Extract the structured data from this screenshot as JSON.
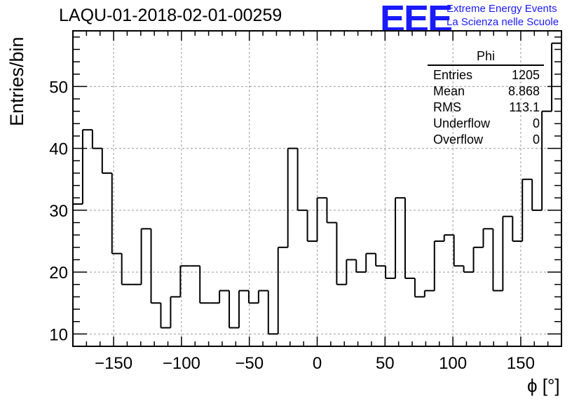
{
  "chart_data": {
    "type": "bar",
    "style": "step-histogram",
    "title": "LAQU-01-2018-02-01-00259",
    "xlabel": "ϕ [°]",
    "ylabel": "Entries/bin",
    "xlim": [
      -180,
      180
    ],
    "ylim": [
      8,
      59
    ],
    "bin_edges_start": -180,
    "bin_width": 7.2,
    "values": [
      31,
      43,
      40,
      36,
      23,
      18,
      18,
      27,
      15,
      11,
      16,
      21,
      21,
      15,
      15,
      17,
      11,
      17,
      15,
      17,
      10,
      24,
      40,
      30,
      25,
      32,
      28,
      18,
      22,
      20,
      23,
      21,
      19,
      32,
      19,
      16,
      17,
      25,
      26,
      21,
      20,
      24,
      27,
      17,
      29,
      25,
      35,
      30,
      46,
      57
    ],
    "xticks": [
      -150,
      -100,
      -50,
      0,
      50,
      100,
      150
    ],
    "xtick_labels": [
      "−150",
      "−100",
      "−50",
      "0",
      "50",
      "100",
      "150"
    ],
    "yticks": [
      10,
      20,
      30,
      40,
      50
    ],
    "ytick_labels": [
      "10",
      "20",
      "30",
      "40",
      "50"
    ],
    "grid": true,
    "stats_box": {
      "title": "Phi",
      "rows": [
        {
          "label": "Entries",
          "value": "1205"
        },
        {
          "label": "Mean",
          "value": "8.868"
        },
        {
          "label": "RMS",
          "value": "113.1"
        },
        {
          "label": "Underflow",
          "value": "0"
        },
        {
          "label": "Overflow",
          "value": "0"
        }
      ]
    }
  },
  "logo": {
    "mark": "EEE",
    "line1": "Extreme Energy Events",
    "line2": "La Scienza nelle Scuole",
    "color": "#1a1aff"
  }
}
